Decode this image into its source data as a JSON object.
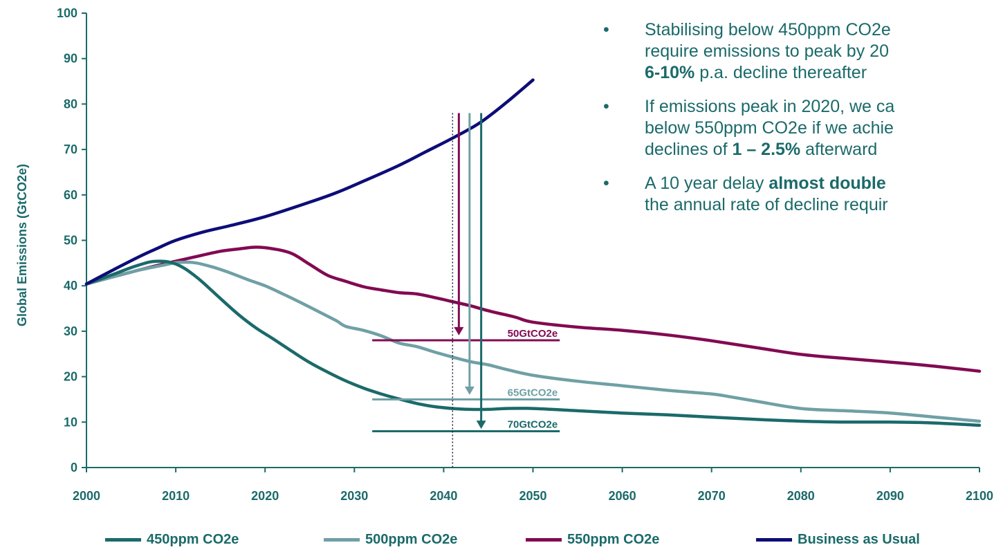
{
  "chart_data": {
    "type": "line",
    "ylabel": "Global Emissions (GtCO2e)",
    "xlabel": "",
    "xlim": [
      2000,
      2100
    ],
    "ylim": [
      0,
      100
    ],
    "x_ticks": [
      "2000",
      "2010",
      "2020",
      "2030",
      "2040",
      "2050",
      "2060",
      "2070",
      "2080",
      "2090",
      "2100"
    ],
    "y_ticks": [
      "0",
      "10",
      "20",
      "30",
      "40",
      "50",
      "60",
      "70",
      "80",
      "90",
      "100"
    ],
    "grid": false,
    "legend_position": "bottom",
    "series": [
      {
        "name": "450ppm CO2e",
        "color": "#1b6a6a",
        "x": [
          2000,
          2003,
          2005,
          2007,
          2008,
          2009,
          2010,
          2011,
          2012,
          2013,
          2015,
          2017,
          2019,
          2021,
          2023,
          2025,
          2027,
          2029,
          2031,
          2033,
          2035,
          2037,
          2039,
          2041,
          2043,
          2045,
          2047,
          2050,
          2055,
          2060,
          2065,
          2070,
          2075,
          2080,
          2085,
          2090,
          2095,
          2100
        ],
        "y": [
          40.4,
          42.5,
          44,
          45.2,
          45.4,
          45.3,
          44.8,
          43.8,
          42.4,
          40.8,
          37.2,
          33.7,
          30.7,
          28.2,
          25.6,
          23.1,
          21.0,
          19.1,
          17.5,
          16.2,
          15.1,
          14.1,
          13.4,
          13.0,
          12.8,
          12.8,
          13.0,
          13.0,
          12.5,
          12.0,
          11.6,
          11.1,
          10.6,
          10.2,
          10.0,
          10.0,
          9.8,
          9.3
        ]
      },
      {
        "name": "500ppm CO2e",
        "color": "#6fa0a5",
        "x": [
          2000,
          2003,
          2006,
          2009,
          2010,
          2012,
          2014,
          2016,
          2018,
          2020,
          2022,
          2024,
          2026,
          2028,
          2029,
          2031,
          2033,
          2035,
          2037,
          2039,
          2041,
          2043,
          2045,
          2047,
          2050,
          2055,
          2060,
          2065,
          2070,
          2072,
          2075,
          2080,
          2085,
          2090,
          2095,
          2100
        ],
        "y": [
          40.4,
          42,
          43.5,
          44.7,
          45.1,
          45.1,
          44.2,
          42.9,
          41.4,
          40.0,
          38.2,
          36.3,
          34.3,
          32.3,
          31.1,
          30.2,
          29.0,
          27.4,
          26.6,
          25.4,
          24.3,
          23.3,
          22.6,
          21.6,
          20.3,
          19.0,
          18.0,
          17.0,
          16.2,
          15.6,
          14.6,
          13.0,
          12.5,
          12.0,
          11.1,
          10.2
        ]
      },
      {
        "name": "550ppm CO2e",
        "color": "#820a52",
        "x": [
          2000,
          2004,
          2008,
          2012,
          2015,
          2017,
          2019,
          2021,
          2023,
          2025,
          2027,
          2029,
          2031,
          2033,
          2035,
          2037,
          2039,
          2041,
          2043,
          2045,
          2048,
          2050,
          2055,
          2060,
          2065,
          2070,
          2075,
          2080,
          2085,
          2090,
          2095,
          2100
        ],
        "y": [
          40.4,
          42.5,
          44.5,
          46.3,
          47.6,
          48.1,
          48.5,
          48.1,
          47.1,
          44.7,
          42.3,
          41.0,
          39.8,
          39.1,
          38.5,
          38.2,
          37.4,
          36.5,
          35.6,
          34.5,
          33.1,
          32.0,
          30.9,
          30.2,
          29.2,
          27.9,
          26.4,
          24.9,
          24.0,
          23.2,
          22.3,
          21.2
        ]
      },
      {
        "name": "Business as Usual",
        "color": "#0d0d78",
        "x": [
          2000,
          2003,
          2006,
          2008,
          2010,
          2013,
          2016,
          2020,
          2025,
          2028,
          2031,
          2035,
          2038,
          2041,
          2044,
          2047,
          2050
        ],
        "y": [
          40.4,
          43.5,
          46.5,
          48.3,
          50.0,
          51.8,
          53.2,
          55.2,
          58.4,
          60.5,
          63.0,
          66.5,
          69.5,
          72.5,
          75.8,
          80.3,
          85.3
        ]
      }
    ],
    "reference_line": {
      "x": 2041,
      "y_top": 78,
      "style": "dotted",
      "color": "#1c1c3a"
    },
    "arrows": [
      {
        "x": 2041.7,
        "from_y": 78,
        "to_y": 29.1,
        "color": "#820a52"
      },
      {
        "x": 2042.9,
        "from_y": 78,
        "to_y": 16.0,
        "color": "#6fa0a5"
      },
      {
        "x": 2044.2,
        "from_y": 78,
        "to_y": 8.5,
        "color": "#1b6a6a"
      }
    ],
    "targets": [
      {
        "label": "50GtCO2e",
        "y": 28.0,
        "x_from": 2032,
        "x_to": 2053,
        "color": "#820a52"
      },
      {
        "label": "65GtCO2e",
        "y": 15.0,
        "x_from": 2032,
        "x_to": 2053,
        "color": "#6fa0a5"
      },
      {
        "label": "70GtCO2e",
        "y": 8.0,
        "x_from": 2032,
        "x_to": 2053,
        "color": "#1b6a6a"
      }
    ]
  },
  "notes": {
    "bullet_char": "•",
    "items": [
      {
        "line1": "Stabilising below 450ppm CO2e",
        "line2": "require emissions to peak by 20",
        "line3_bold": "6-10%",
        "line3_rest": " p.a. decline thereafter"
      },
      {
        "line1": "If emissions peak in 2020, we ca",
        "line2": "below 550ppm CO2e if we achie",
        "line3_prefix": "declines of ",
        "line3_bold": "1 – 2.5%",
        "line3_rest": " afterward"
      },
      {
        "line1_prefix": "A 10 year delay ",
        "line1_bold": "almost double",
        "line2": "the annual rate of decline requir"
      }
    ]
  }
}
